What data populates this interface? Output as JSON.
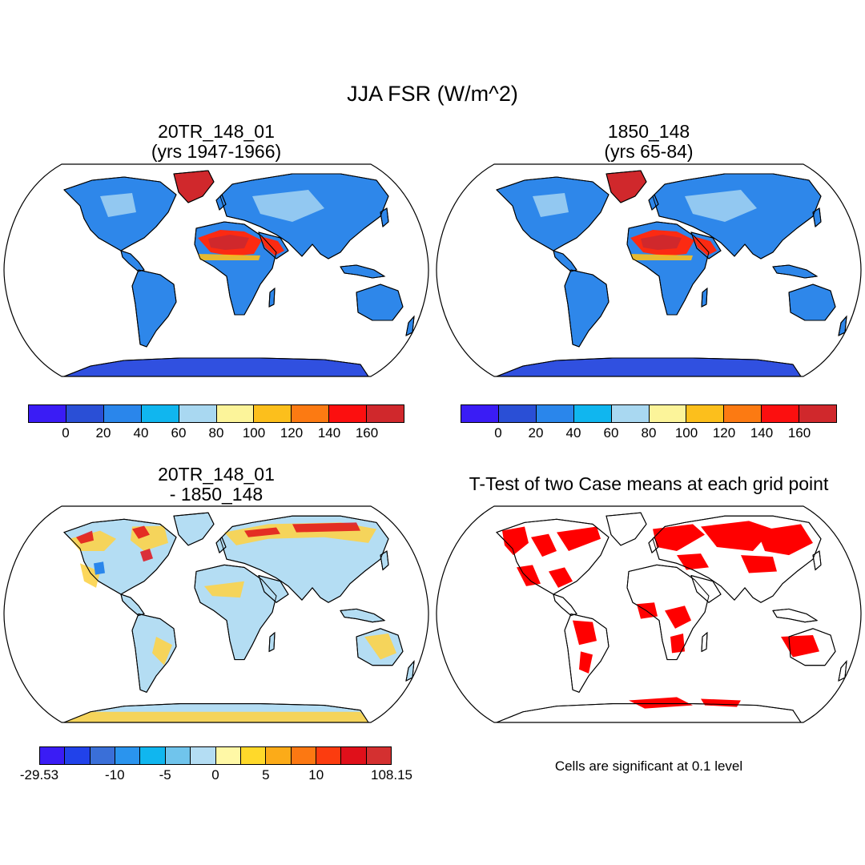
{
  "title": "JJA FSR (W/m^2)",
  "panels": [
    {
      "title_line1": "20TR_148_01",
      "title_line2": "(yrs 1947-1966)"
    },
    {
      "title_line1": "1850_148",
      "title_line2": "(yrs 65-84)"
    },
    {
      "title_line1": "20TR_148_01",
      "title_line2": "- 1850_148"
    },
    {
      "title_line1": "T-Test of two Case means at each grid point",
      "title_line2": ""
    }
  ],
  "note": "Cells are significant at 0.1 level",
  "colorbars": {
    "absolute": {
      "colors": [
        "#3a1cf5",
        "#2a4fd6",
        "#2a86eb",
        "#10b6ef",
        "#a9d8f1",
        "#fcf49a",
        "#fcbf1c",
        "#fc7a12",
        "#fc0f0f",
        "#d0282c"
      ],
      "labels": [
        "0",
        "20",
        "40",
        "60",
        "80",
        "100",
        "120",
        "140",
        "160"
      ]
    },
    "difference": {
      "colors": [
        "#3a1cf5",
        "#2142ea",
        "#3a6fd8",
        "#2a94ee",
        "#10b6ef",
        "#70c4ec",
        "#b4ddf3",
        "#fff8a6",
        "#ffd92a",
        "#fcab18",
        "#fc7812",
        "#fc3c0f",
        "#e0101a",
        "#d43030"
      ],
      "labels": [
        "-29.53",
        "-10",
        "-5",
        "0",
        "5",
        "10",
        "108.15"
      ]
    }
  },
  "colors": {
    "ocean": "#ffffff",
    "land_base": "#2e87ea",
    "desert_hot": "#fc2a12",
    "antarctica": "#3050e0",
    "greenland": "#d0282c",
    "diff_land": "#b4ddf3",
    "diff_warm": "#fcd34a",
    "significant": "#ff0000"
  }
}
